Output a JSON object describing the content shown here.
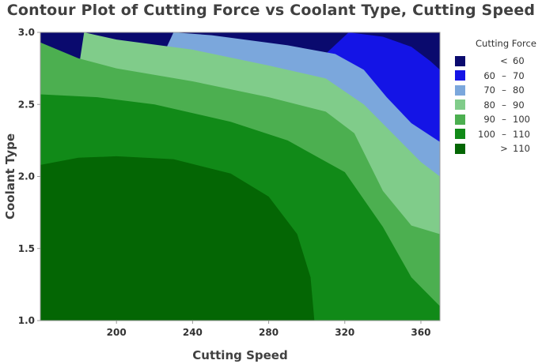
{
  "chart_data": {
    "type": "contour",
    "title": "Contour Plot of Cutting Force vs Coolant Type, Cutting Speed",
    "xlabel": "Cutting Speed",
    "ylabel": "Coolant Type",
    "xlim": [
      160,
      370
    ],
    "ylim": [
      1.0,
      3.0
    ],
    "x_ticks": [
      "200",
      "240",
      "280",
      "320",
      "360"
    ],
    "y_ticks": [
      "1.0",
      "1.5",
      "2.0",
      "2.5",
      "3.0"
    ],
    "legend": {
      "title": "Cutting Force",
      "placement": "right",
      "entries": [
        {
          "lo": "",
          "sep": "<",
          "hi": "60",
          "color": "#0a0a6e"
        },
        {
          "lo": "60",
          "sep": "–",
          "hi": "70",
          "color": "#1414e6"
        },
        {
          "lo": "70",
          "sep": "–",
          "hi": "80",
          "color": "#7ba7dc"
        },
        {
          "lo": "80",
          "sep": "–",
          "hi": "90",
          "color": "#80cc8a"
        },
        {
          "lo": "90",
          "sep": "–",
          "hi": "100",
          "color": "#4caf50"
        },
        {
          "lo": "100",
          "sep": "–",
          "hi": "110",
          "color": "#118a18"
        },
        {
          "lo": "",
          "sep": ">",
          "hi": "110",
          "color": "#046604"
        }
      ]
    },
    "contour_boundaries": [
      {
        "level": 110,
        "points": [
          [
            160,
            2.08
          ],
          [
            180,
            2.13
          ],
          [
            200,
            2.14
          ],
          [
            230,
            2.12
          ],
          [
            260,
            2.02
          ],
          [
            280,
            1.86
          ],
          [
            295,
            1.6
          ],
          [
            302,
            1.3
          ],
          [
            304,
            1.0
          ]
        ]
      },
      {
        "level": 100,
        "points": [
          [
            160,
            2.57
          ],
          [
            190,
            2.55
          ],
          [
            220,
            2.5
          ],
          [
            260,
            2.38
          ],
          [
            290,
            2.25
          ],
          [
            320,
            2.03
          ],
          [
            340,
            1.65
          ],
          [
            355,
            1.3
          ],
          [
            370,
            1.1
          ]
        ]
      },
      {
        "level": 90,
        "points": [
          [
            160,
            2.93
          ],
          [
            180,
            2.82
          ],
          [
            200,
            2.75
          ],
          [
            240,
            2.66
          ],
          [
            280,
            2.55
          ],
          [
            310,
            2.45
          ],
          [
            325,
            2.3
          ],
          [
            340,
            1.9
          ],
          [
            355,
            1.66
          ],
          [
            370,
            1.6
          ]
        ]
      },
      {
        "level": 80,
        "points": [
          [
            183,
            3.0
          ],
          [
            200,
            2.95
          ],
          [
            240,
            2.88
          ],
          [
            280,
            2.77
          ],
          [
            310,
            2.68
          ],
          [
            330,
            2.5
          ],
          [
            345,
            2.3
          ],
          [
            360,
            2.1
          ],
          [
            370,
            2.0
          ]
        ]
      },
      {
        "level": 70,
        "points": [
          [
            230,
            3.0
          ],
          [
            250,
            2.98
          ],
          [
            290,
            2.91
          ],
          [
            315,
            2.85
          ],
          [
            330,
            2.74
          ],
          [
            342,
            2.55
          ],
          [
            355,
            2.37
          ],
          [
            370,
            2.24
          ]
        ]
      },
      {
        "level": 60,
        "points": [
          [
            322,
            3.0
          ],
          [
            340,
            2.97
          ],
          [
            355,
            2.9
          ],
          [
            365,
            2.8
          ],
          [
            370,
            2.74
          ]
        ]
      }
    ]
  }
}
